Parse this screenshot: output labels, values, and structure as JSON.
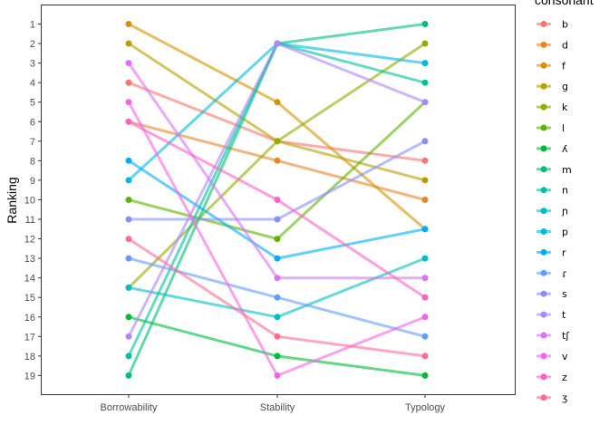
{
  "chart_data": {
    "type": "line",
    "title": "",
    "xlabel": "",
    "ylabel": "Ranking",
    "categories": [
      "Borrowability",
      "Stability",
      "Typology"
    ],
    "y_ticks": [
      "1",
      "2",
      "3",
      "4",
      "5",
      "6",
      "7",
      "8",
      "9",
      "10",
      "11",
      "12",
      "13",
      "14",
      "15",
      "16",
      "17",
      "18",
      "19"
    ],
    "ylim": [
      1,
      19
    ],
    "y_reversed": true,
    "grid": false,
    "legend": {
      "title": "consonant",
      "placement": "right"
    },
    "series": [
      {
        "name": "b",
        "color": "#F8766D",
        "values": [
          4,
          7,
          8
        ]
      },
      {
        "name": "d",
        "color": "#E88526",
        "values": [
          6,
          8,
          10
        ]
      },
      {
        "name": "f",
        "color": "#D39200",
        "values": [
          1,
          5,
          11.5
        ]
      },
      {
        "name": "g",
        "color": "#B79F00",
        "values": [
          2,
          7,
          9
        ]
      },
      {
        "name": "k",
        "color": "#93AA00",
        "values": [
          14.5,
          7,
          2
        ]
      },
      {
        "name": "l",
        "color": "#5EB300",
        "values": [
          10,
          12,
          5
        ]
      },
      {
        "name": "ʎ",
        "color": "#00BA38",
        "values": [
          16,
          18,
          19
        ]
      },
      {
        "name": "m",
        "color": "#00BF74",
        "values": [
          19,
          2,
          1
        ]
      },
      {
        "name": "n",
        "color": "#00C19F",
        "values": [
          18,
          2,
          4
        ]
      },
      {
        "name": "ɲ",
        "color": "#00BFC4",
        "values": [
          14.5,
          16,
          13
        ]
      },
      {
        "name": "p",
        "color": "#00B9E3",
        "values": [
          9,
          2,
          3
        ]
      },
      {
        "name": "r",
        "color": "#00ADFA",
        "values": [
          8,
          13,
          11.5
        ]
      },
      {
        "name": "ɾ",
        "color": "#619CFF",
        "values": [
          13,
          15,
          17
        ]
      },
      {
        "name": "s",
        "color": "#8A8DFF",
        "values": [
          11,
          11,
          7
        ]
      },
      {
        "name": "t",
        "color": "#AE87FF",
        "values": [
          17,
          2,
          5
        ]
      },
      {
        "name": "tʃ",
        "color": "#DB72FB",
        "values": [
          3,
          14,
          14
        ]
      },
      {
        "name": "v",
        "color": "#F564E3",
        "values": [
          5,
          19,
          16
        ]
      },
      {
        "name": "z",
        "color": "#FF61C3",
        "values": [
          6,
          10,
          15
        ]
      },
      {
        "name": "ʒ",
        "color": "#FF6C91",
        "values": [
          12,
          17,
          18
        ]
      }
    ]
  }
}
